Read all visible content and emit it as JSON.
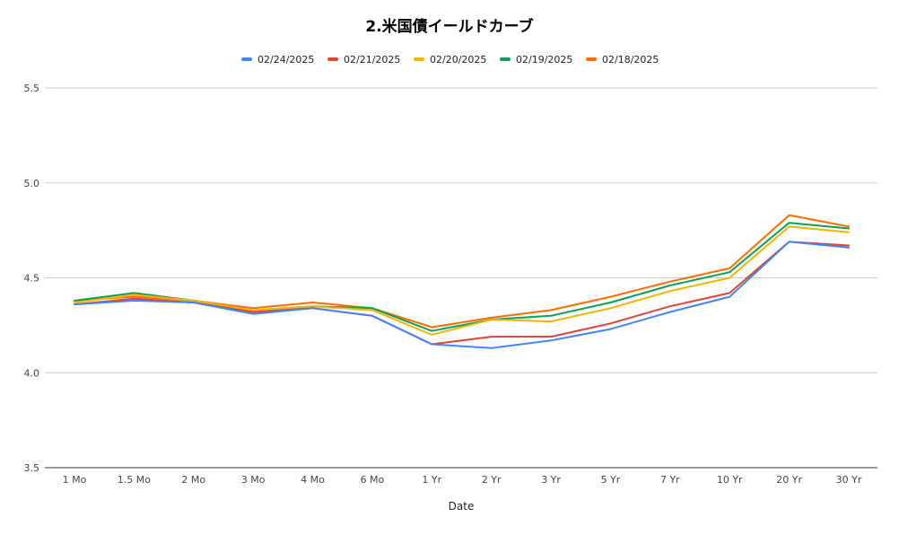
{
  "chart_data": {
    "type": "line",
    "title": "2.米国債イールドカーブ",
    "xlabel": "Date",
    "ylabel": "",
    "ylim": [
      3.5,
      5.5
    ],
    "yticks": [
      "3.5",
      "4.0",
      "4.5",
      "5.0",
      "5.5"
    ],
    "grid": true,
    "legend_position": "top",
    "categories": [
      "1 Mo",
      "1.5 Mo",
      "2 Mo",
      "3 Mo",
      "4 Mo",
      "6 Mo",
      "1 Yr",
      "2 Yr",
      "3 Yr",
      "5 Yr",
      "7 Yr",
      "10 Yr",
      "20 Yr",
      "30 Yr"
    ],
    "series": [
      {
        "name": "02/24/2025",
        "color": "#4285f4",
        "values": [
          4.36,
          4.38,
          4.37,
          4.31,
          4.34,
          4.3,
          4.15,
          4.13,
          4.17,
          4.23,
          4.32,
          4.4,
          4.69,
          4.66
        ]
      },
      {
        "name": "02/21/2025",
        "color": "#db4437",
        "values": [
          4.36,
          4.39,
          4.37,
          4.32,
          4.34,
          4.3,
          4.15,
          4.19,
          4.19,
          4.26,
          4.35,
          4.42,
          4.69,
          4.67
        ]
      },
      {
        "name": "02/20/2025",
        "color": "#f4b400",
        "values": [
          4.37,
          4.41,
          4.38,
          4.33,
          4.35,
          4.33,
          4.2,
          4.28,
          4.27,
          4.34,
          4.43,
          4.5,
          4.77,
          4.74
        ]
      },
      {
        "name": "02/19/2025",
        "color": "#0f9d58",
        "values": [
          4.38,
          4.42,
          4.38,
          4.33,
          4.35,
          4.34,
          4.22,
          4.28,
          4.3,
          4.37,
          4.46,
          4.53,
          4.79,
          4.76
        ]
      },
      {
        "name": "02/18/2025",
        "color": "#ff6d01",
        "values": [
          4.38,
          4.4,
          4.38,
          4.34,
          4.37,
          4.34,
          4.24,
          4.29,
          4.33,
          4.4,
          4.48,
          4.55,
          4.83,
          4.77
        ]
      }
    ]
  }
}
